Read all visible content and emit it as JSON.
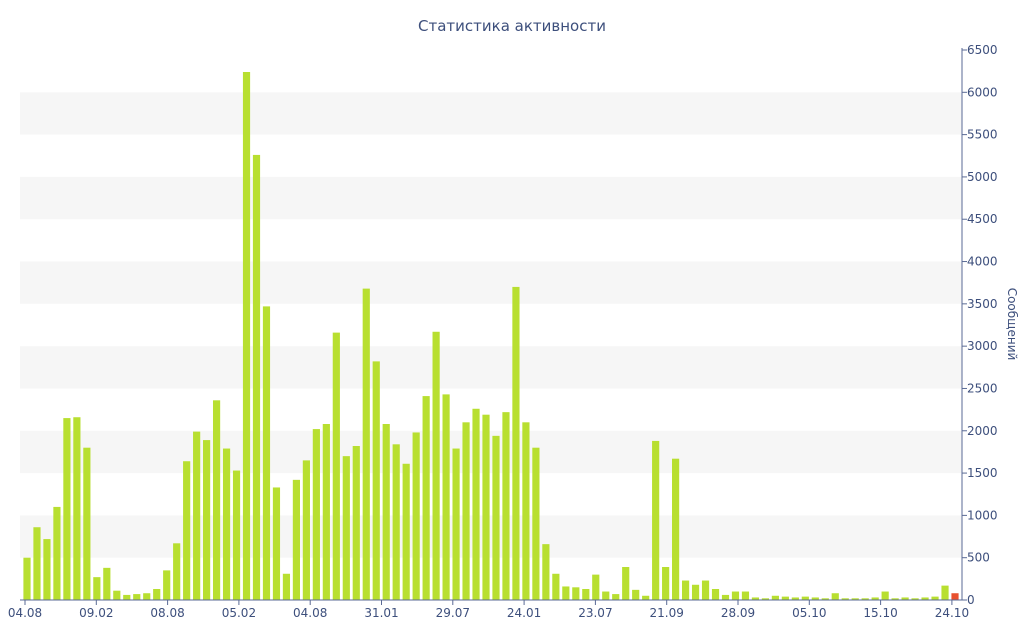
{
  "chart_data": {
    "type": "bar",
    "title": "Статистика активности",
    "xlabel": "",
    "ylabel": "Сообщений",
    "ylim": [
      0,
      6500
    ],
    "y_ticks": [
      0,
      500,
      1000,
      1500,
      2000,
      2500,
      3000,
      3500,
      4000,
      4500,
      5000,
      5500,
      6000,
      6500
    ],
    "y_axis_position": "right",
    "grid": "alternating horizontal bands",
    "x_tick_labels": [
      "04.08",
      "09.02",
      "08.08",
      "05.02",
      "04.08",
      "31.01",
      "29.07",
      "24.01",
      "23.07",
      "21.09",
      "28.09",
      "05.10",
      "15.10",
      "24.10"
    ],
    "bar_color": "#b8df30",
    "highlight_color": "#e8502f",
    "values": [
      500,
      860,
      720,
      1100,
      2150,
      2160,
      1800,
      270,
      380,
      110,
      60,
      70,
      80,
      130,
      350,
      670,
      1640,
      1990,
      1890,
      2360,
      1790,
      1530,
      6240,
      5260,
      3470,
      1330,
      310,
      1420,
      1650,
      2020,
      2080,
      3160,
      1700,
      1820,
      3680,
      2820,
      2080,
      1840,
      1610,
      1980,
      2410,
      3170,
      2430,
      1790,
      2100,
      2260,
      2190,
      1940,
      2220,
      3700,
      2100,
      1800,
      660,
      310,
      160,
      150,
      130,
      300,
      100,
      70,
      390,
      120,
      50,
      1880,
      390,
      1670,
      230,
      180,
      230,
      130,
      60,
      100,
      100,
      30,
      20,
      50,
      40,
      30,
      40,
      30,
      20,
      80,
      20,
      20,
      20,
      30,
      100,
      20,
      30,
      20,
      30,
      40,
      170,
      80
    ],
    "highlight_index": 93
  }
}
